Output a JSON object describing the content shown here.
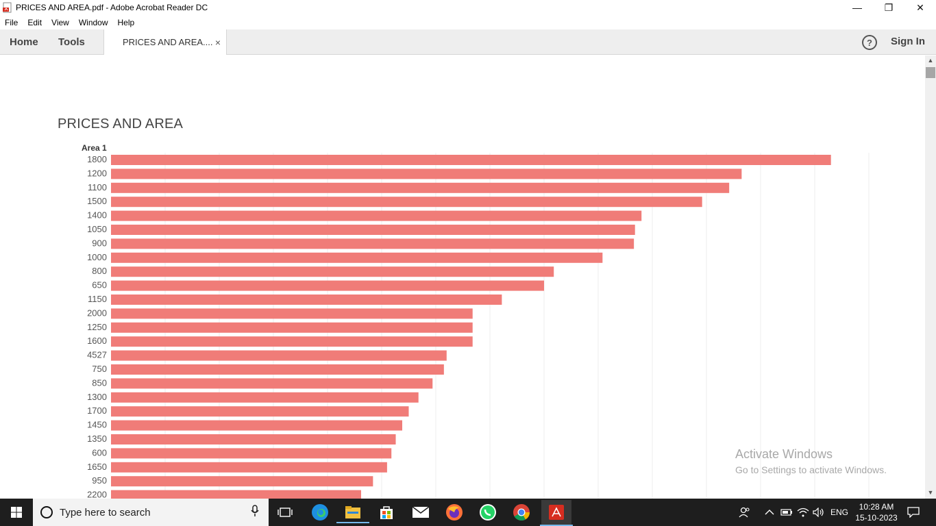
{
  "window": {
    "title": "PRICES AND AREA.pdf - Adobe Acrobat Reader DC",
    "minimize": "—",
    "restore": "❐",
    "close": "✕"
  },
  "menu": [
    "File",
    "Edit",
    "View",
    "Window",
    "Help"
  ],
  "toolbar": {
    "home": "Home",
    "tools": "Tools",
    "doc_tab": "PRICES AND AREA....",
    "doc_tab_close": "×",
    "help": "?",
    "sign_in": "Sign In"
  },
  "chart_data": {
    "type": "bar",
    "orientation": "horizontal",
    "title": "PRICES AND AREA",
    "ylabel": "Area 1",
    "color": "#f07c78",
    "categories": [
      "1800",
      "1200",
      "1100",
      "1500",
      "1400",
      "1050",
      "900",
      "1000",
      "800",
      "650",
      "1150",
      "2000",
      "1250",
      "1600",
      "4527",
      "750",
      "850",
      "1300",
      "1700",
      "1450",
      "1350",
      "600",
      "1650",
      "950",
      "2200"
    ],
    "values": [
      1330,
      1165,
      1142,
      1092,
      980,
      968,
      966,
      908,
      818,
      800,
      722,
      668,
      668,
      668,
      620,
      615,
      594,
      568,
      550,
      538,
      526,
      518,
      510,
      484,
      462
    ],
    "xlim": [
      0,
      1400
    ],
    "grid": true
  },
  "watermark": {
    "line1": "Activate Windows",
    "line2": "Go to Settings to activate Windows."
  },
  "taskbar": {
    "search_placeholder": "Type here to search",
    "lang": "ENG",
    "time": "10:28 AM",
    "date": "15-10-2023"
  }
}
